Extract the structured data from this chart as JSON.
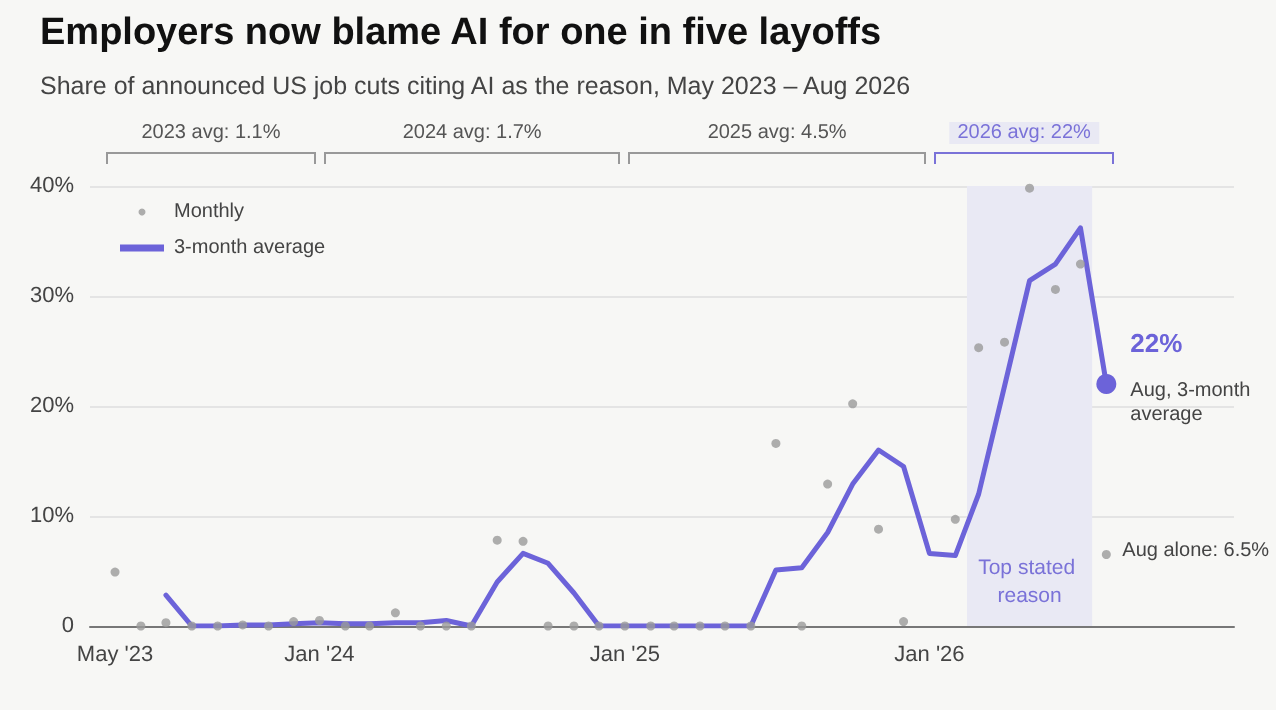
{
  "chart_data": {
    "type": "line",
    "title": "Employers now blame AI for one in five layoffs",
    "subtitle": "Share of announced US job cuts citing AI as the reason, May 2023 – Aug 2026",
    "x": [
      "2023-05",
      "2023-06",
      "2023-07",
      "2023-08",
      "2023-09",
      "2023-10",
      "2023-11",
      "2023-12",
      "2024-01",
      "2024-02",
      "2024-03",
      "2024-04",
      "2024-05",
      "2024-06",
      "2024-07",
      "2024-08",
      "2024-09",
      "2024-10",
      "2024-11",
      "2024-12",
      "2025-01",
      "2025-02",
      "2025-03",
      "2025-04",
      "2025-05",
      "2025-06",
      "2025-07",
      "2025-08",
      "2025-09",
      "2025-10",
      "2025-11",
      "2025-12",
      "2026-01",
      "2026-02",
      "2026-03",
      "2026-04",
      "2026-05",
      "2026-06",
      "2026-07",
      "2026-08"
    ],
    "series": [
      {
        "name": "Monthly",
        "type": "scatter",
        "marker": "circle",
        "color": "#9a9a9a",
        "values": [
          4.9,
          0,
          0.3,
          0,
          0,
          0.1,
          0,
          0.4,
          0.5,
          0,
          0,
          1.2,
          0,
          0,
          0,
          7.8,
          7.7,
          0,
          0,
          0,
          0,
          0,
          0,
          0,
          0,
          0,
          16.6,
          0,
          12.9,
          20.2,
          8.8,
          0.4,
          null,
          9.7,
          25.3,
          25.8,
          39.8,
          30.6,
          32.9,
          6.5
        ]
      },
      {
        "name": "3-month average",
        "marker": "none",
        "line_style": "solid",
        "color": "#6c63d9",
        "values": [
          null,
          null,
          2.8,
          0,
          0,
          0.1,
          0.1,
          0.2,
          0.3,
          0.2,
          0.2,
          0.3,
          0.3,
          0.5,
          0,
          4.0,
          6.6,
          5.7,
          3.0,
          0,
          0,
          0,
          0,
          0,
          0,
          0,
          5.1,
          5.3,
          8.5,
          12.9,
          16.0,
          14.5,
          6.6,
          6.4,
          12.0,
          21.8,
          31.4,
          32.9,
          36.2,
          22
        ]
      }
    ],
    "xlim": [
      "2023-04",
      "2027-01"
    ],
    "xticks": [
      {
        "value": "2023-05",
        "label": "May '23"
      },
      {
        "value": "2024-01",
        "label": "Jan '24"
      },
      {
        "value": "2025-01",
        "label": "Jan '25"
      },
      {
        "value": "2026-01",
        "label": "Jan '26"
      }
    ],
    "ylim": [
      0,
      40
    ],
    "yticks": [
      {
        "value": 0,
        "label": "0"
      },
      {
        "value": 10,
        "label": "10%"
      },
      {
        "value": 20,
        "label": "20%"
      },
      {
        "value": 30,
        "label": "30%"
      },
      {
        "value": 40,
        "label": "40%"
      }
    ],
    "grid": "y",
    "legend": "top left",
    "bands": [
      {
        "axis": "x",
        "from": "2026-02-15",
        "to": "2026-07-15",
        "label": "Top stated reason",
        "color": "#e9e9f4"
      }
    ],
    "annotations": [
      "2023 avg: 1.1%",
      "2024 avg: 1.7%",
      "2025 avg: 4.5%",
      "2026 avg: 22%",
      {
        "text": "22%",
        "x": "2026-08",
        "y": 22
      },
      {
        "text": "Aug, 3-month average",
        "x": "2026-08",
        "y": 22
      },
      {
        "text": "Aug alone: 6.5%",
        "x": "2026-08",
        "y": 6.5
      }
    ]
  }
}
